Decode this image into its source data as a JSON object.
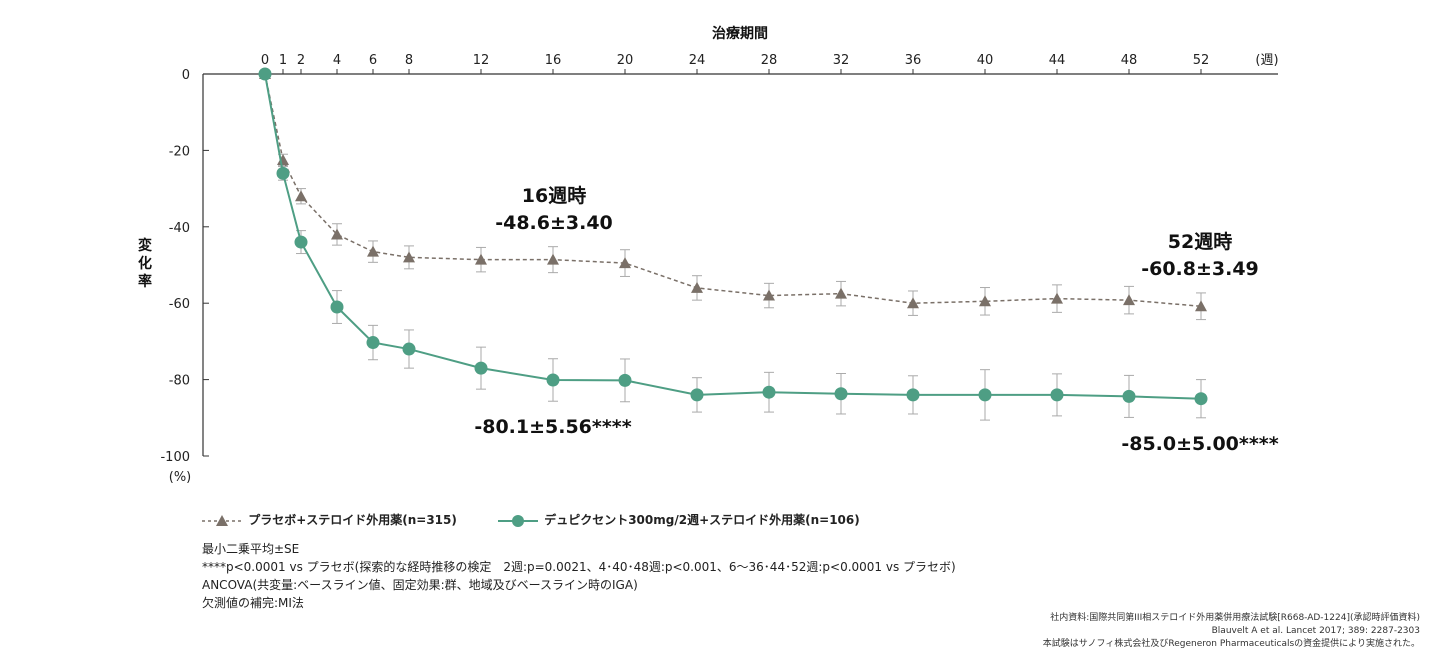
{
  "chart_data": {
    "type": "line",
    "title": "治療期間",
    "xlabel": "(週)",
    "ylabel": "変化率",
    "yunit": "(%)",
    "ylim": [
      -100,
      0
    ],
    "yticks": [
      0,
      -20,
      -40,
      -60,
      -80,
      -100
    ],
    "ytick_labels": [
      "0",
      "-20",
      "-40",
      "-60",
      "-80",
      "-100"
    ],
    "x": [
      0,
      1,
      2,
      4,
      6,
      8,
      12,
      16,
      20,
      24,
      28,
      32,
      36,
      40,
      44,
      48,
      52
    ],
    "xtick_labels": [
      "0",
      "1",
      "2",
      "4",
      "6",
      "8",
      "12",
      "16",
      "20",
      "24",
      "28",
      "32",
      "36",
      "40",
      "44",
      "48",
      "52"
    ],
    "series": [
      {
        "name": "プラセボ+ステロイド外用薬(n=315)",
        "color": "#7a7068",
        "marker": "triangle",
        "line_style": "dashed",
        "values": [
          0,
          -22.5,
          -32,
          -42,
          -46.5,
          -48,
          -48.6,
          -48.6,
          -49.5,
          -56,
          -58,
          -57.5,
          -60,
          -59.5,
          -58.8,
          -59.2,
          -60.8
        ],
        "errors": [
          0,
          1.5,
          2,
          2.8,
          2.8,
          3.0,
          3.2,
          3.4,
          3.5,
          3.2,
          3.2,
          3.2,
          3.2,
          3.6,
          3.6,
          3.6,
          3.49
        ]
      },
      {
        "name": "デュピクセント300mg/2週+ステロイド外用薬(n=106)",
        "color": "#4e9e84",
        "marker": "circle",
        "line_style": "solid",
        "values": [
          0,
          -26,
          -44,
          -61,
          -70.3,
          -72,
          -77,
          -80.1,
          -80.2,
          -84,
          -83.3,
          -83.7,
          -84,
          -84,
          -84,
          -84.4,
          -85.0
        ],
        "errors": [
          0,
          1.8,
          3,
          4.3,
          4.5,
          5.0,
          5.5,
          5.56,
          5.6,
          4.5,
          5.2,
          5.3,
          5.0,
          6.6,
          5.5,
          5.5,
          5.0
        ]
      }
    ],
    "annotations": [
      {
        "line1": "16週時",
        "line2": "-48.6±3.40"
      },
      {
        "line1": "52週時",
        "line2": "-60.8±3.49"
      },
      {
        "text": "-80.1±5.56****"
      },
      {
        "text": "-85.0±5.00****"
      }
    ],
    "grid": false,
    "legend_position": "bottom-left"
  },
  "notes": [
    "最小二乗平均±SE",
    "****p<0.0001 vs プラセボ(探索的な経時推移の検定　2週:p=0.0021、4･40･48週:p<0.001、6～36･44･52週:p<0.0001 vs プラセボ)",
    "ANCOVA(共変量:ベースライン値、固定効果:群、地域及びベースライン時のIGA)",
    "欠測値の補完:MI法"
  ],
  "references": [
    "社内資料:国際共同第III相ステロイド外用薬併用療法試験[R668-AD-1224](承認時評価資料)",
    "Blauvelt A et al. Lancet 2017; 389: 2287-2303",
    "本試験はサノフィ株式会社及びRegeneron Pharmaceuticalsの資金提供により実施された。"
  ]
}
